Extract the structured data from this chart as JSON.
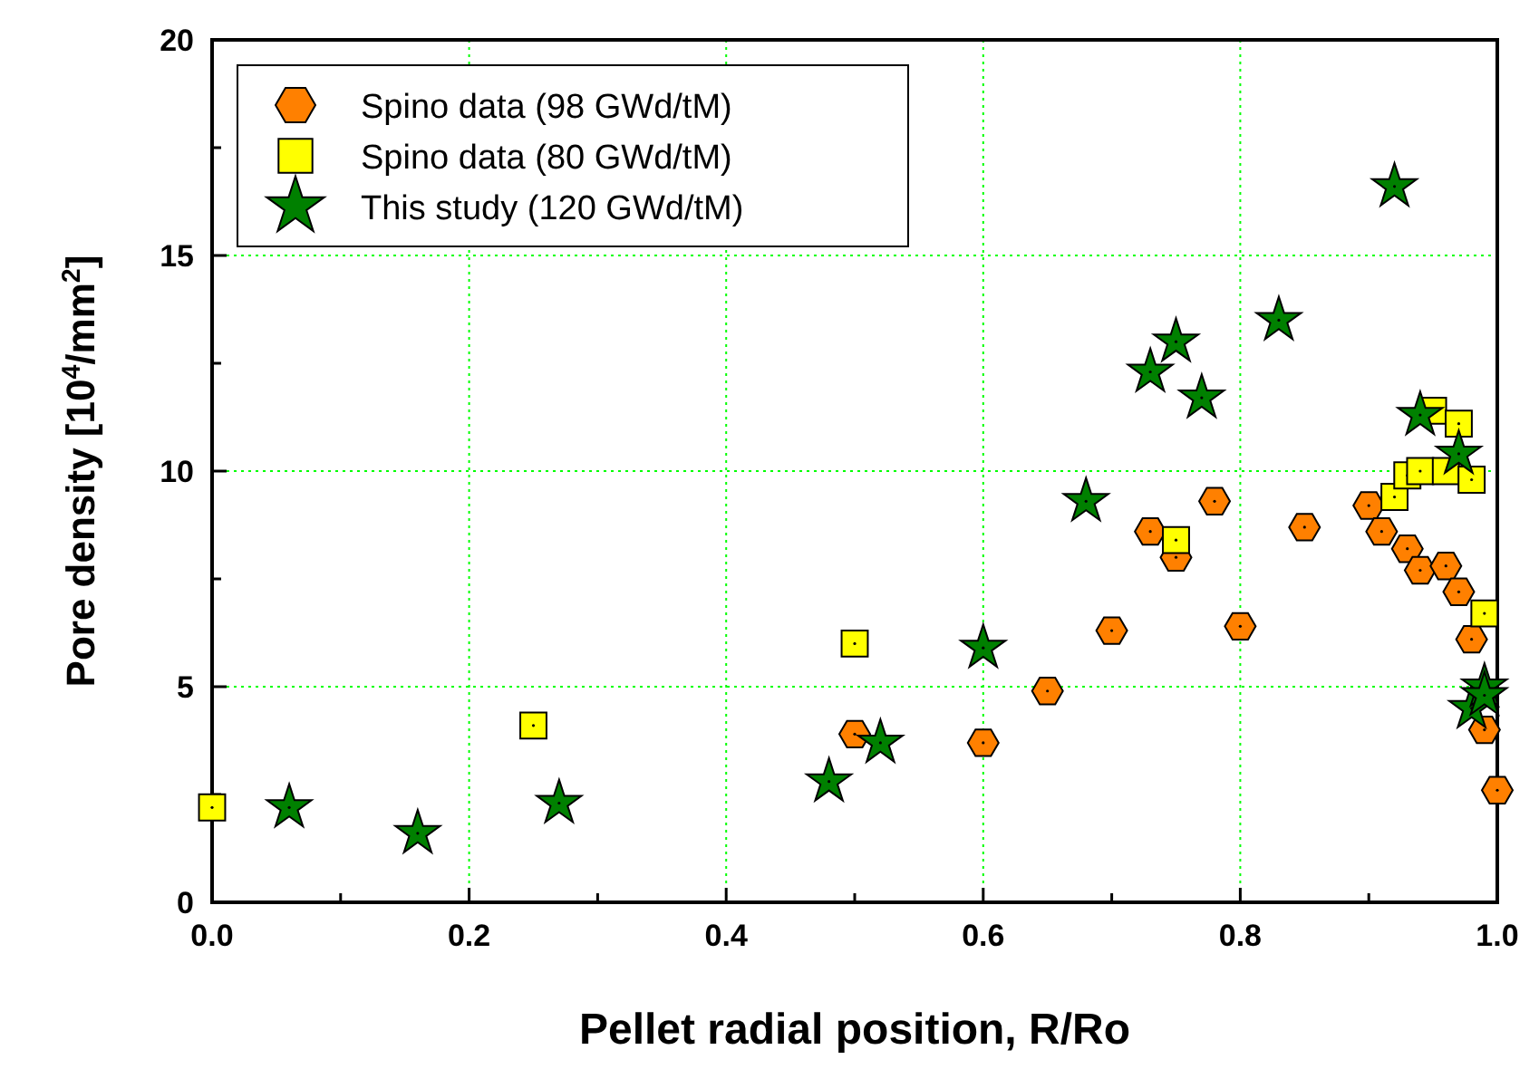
{
  "chart_data": {
    "type": "scatter",
    "xlabel": "Pellet radial position, R/Ro",
    "ylabel": "Pore density [10$^{4}$/mm$^{2}$]",
    "xlim": [
      0,
      1
    ],
    "ylim": [
      0,
      20
    ],
    "xticks": [
      {
        "value": 0,
        "label": "0.0"
      },
      {
        "value": 0.1,
        "label": null
      },
      {
        "value": 0.2,
        "label": "0.2"
      },
      {
        "value": 0.3,
        "label": null
      },
      {
        "value": 0.4,
        "label": "0.4"
      },
      {
        "value": 0.5,
        "label": null
      },
      {
        "value": 0.6,
        "label": "0.6"
      },
      {
        "value": 0.7,
        "label": null
      },
      {
        "value": 0.8,
        "label": "0.8"
      },
      {
        "value": 0.9,
        "label": null
      },
      {
        "value": 1,
        "label": "1.0"
      }
    ],
    "yticks": [
      0,
      {
        "value": 2.5,
        "label": null
      },
      5,
      {
        "value": 7.5,
        "label": null
      },
      10,
      {
        "value": 12.5,
        "label": null
      },
      15,
      {
        "value": 17.5,
        "label": null
      },
      20
    ],
    "grid": true,
    "legend": "top left",
    "series": [
      {
        "name": "Spino data (98 GWd/tM)",
        "color": "#ff8000",
        "x": [
          0.5,
          0.6,
          0.65,
          0.7,
          0.73,
          0.75,
          0.78,
          0.8,
          0.85,
          0.9,
          0.91,
          0.93,
          0.94,
          0.96,
          0.97,
          0.98,
          0.99,
          1.0
        ],
        "values": [
          3.9,
          3.7,
          4.9,
          6.3,
          8.6,
          8.0,
          9.3,
          6.4,
          8.7,
          9.2,
          8.6,
          8.2,
          7.7,
          7.8,
          7.2,
          6.1,
          4.0,
          2.6
        ]
      },
      {
        "name": "Spino data (80 GWd/tM)",
        "color": "#ffff00",
        "marker": "square",
        "x": [
          0,
          0.25,
          0.5,
          0.75,
          0.92,
          0.93,
          0.94,
          0.96,
          0.98,
          0.95,
          0.97,
          0.99
        ],
        "values": [
          2.2,
          4.1,
          6.0,
          8.4,
          9.4,
          9.9,
          10.0,
          10.0,
          9.8,
          11.4,
          11.1,
          6.7
        ]
      },
      {
        "name": "This study (120 GWd/tM)",
        "color": "#008000",
        "marker": "star",
        "x": [
          0.06,
          0.16,
          0.27,
          0.48,
          0.52,
          0.6,
          0.68,
          0.73,
          0.75,
          0.77,
          0.83,
          0.92,
          0.94,
          0.97,
          0.98,
          0.99,
          0.99
        ],
        "values": [
          2.2,
          1.6,
          2.3,
          2.8,
          3.7,
          5.9,
          9.3,
          12.3,
          13.0,
          11.7,
          13.5,
          16.6,
          11.3,
          10.4,
          4.5,
          5.0,
          4.8
        ]
      }
    ]
  }
}
